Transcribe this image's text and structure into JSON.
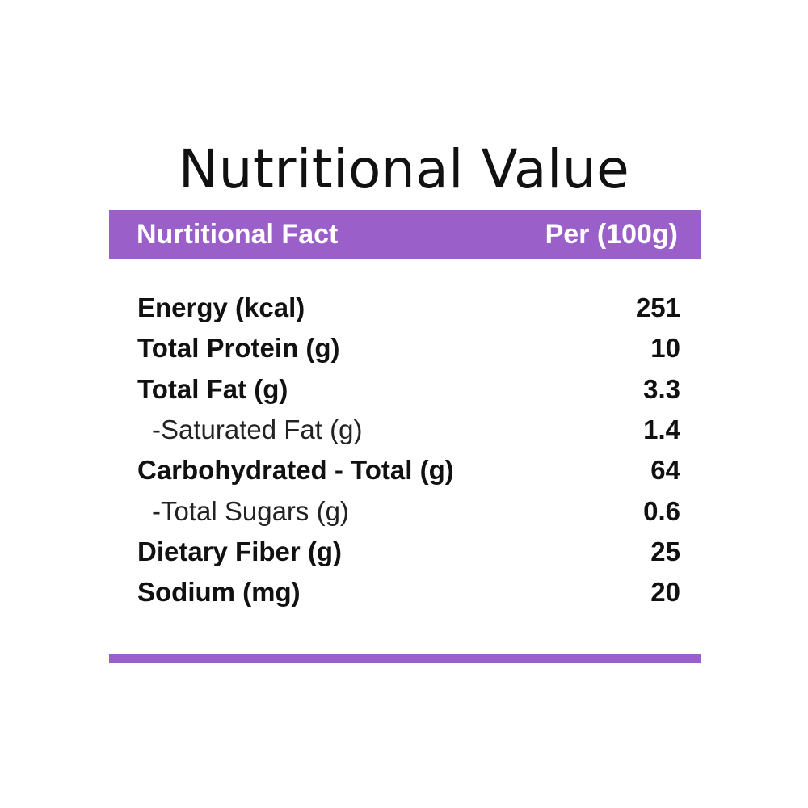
{
  "title": "Nutritional Value",
  "header": {
    "left": "Nurtitional Fact",
    "right": "Per (100g)"
  },
  "rows": [
    {
      "label": "Energy (kcal)",
      "value": "251",
      "sub": false
    },
    {
      "label": "Total Protein (g)",
      "value": "10",
      "sub": false
    },
    {
      "label": "Total Fat (g)",
      "value": "3.3",
      "sub": false
    },
    {
      "label": "-Saturated Fat (g)",
      "value": "1.4",
      "sub": true
    },
    {
      "label": "Carbohydrated - Total (g)",
      "value": "64",
      "sub": false
    },
    {
      "label": "-Total Sugars (g)",
      "value": "0.6",
      "sub": true
    },
    {
      "label": "Dietary Fiber (g)",
      "value": "25",
      "sub": false
    },
    {
      "label": "Sodium (mg)",
      "value": "20",
      "sub": false
    }
  ],
  "colors": {
    "accent": "#9b5fc9",
    "text": "#111111",
    "background": "#ffffff"
  }
}
